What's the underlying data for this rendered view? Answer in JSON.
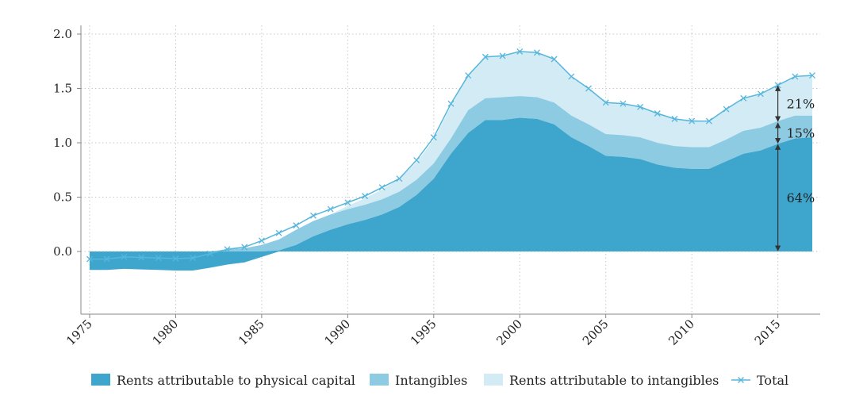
{
  "chart_data": {
    "type": "area",
    "x": [
      1975,
      1976,
      1977,
      1978,
      1979,
      1980,
      1981,
      1982,
      1983,
      1984,
      1985,
      1986,
      1987,
      1988,
      1989,
      1990,
      1991,
      1992,
      1993,
      1994,
      1995,
      1996,
      1997,
      1998,
      1999,
      2000,
      2001,
      2002,
      2003,
      2004,
      2005,
      2006,
      2007,
      2008,
      2009,
      2010,
      2011,
      2012,
      2013,
      2014,
      2015,
      2016,
      2017
    ],
    "series": [
      {
        "name": "Rents attributable to physical capital",
        "color": "#3ea6cd",
        "values": [
          -0.17,
          -0.17,
          -0.16,
          -0.165,
          -0.17,
          -0.175,
          -0.175,
          -0.15,
          -0.12,
          -0.1,
          -0.05,
          0.01,
          0.06,
          0.14,
          0.2,
          0.25,
          0.29,
          0.34,
          0.41,
          0.52,
          0.67,
          0.9,
          1.09,
          1.21,
          1.21,
          1.23,
          1.22,
          1.17,
          1.05,
          0.97,
          0.88,
          0.87,
          0.85,
          0.8,
          0.77,
          0.76,
          0.76,
          0.83,
          0.9,
          0.93,
          0.99,
          1.04,
          1.05
        ]
      },
      {
        "name": "Intangibles",
        "color": "#8dcbe3",
        "values": [
          0,
          0,
          0,
          0,
          0,
          0,
          0,
          0,
          0.02,
          0.03,
          0.06,
          0.1,
          0.14,
          0.14,
          0.14,
          0.14,
          0.14,
          0.14,
          0.14,
          0.14,
          0.14,
          0.14,
          0.21,
          0.2,
          0.21,
          0.2,
          0.2,
          0.2,
          0.2,
          0.2,
          0.2,
          0.2,
          0.2,
          0.2,
          0.2,
          0.2,
          0.2,
          0.2,
          0.21,
          0.21,
          0.21,
          0.21,
          0.2
        ]
      },
      {
        "name": "Rents attributable to intangibles",
        "color": "#d3ebf5",
        "values": [
          0,
          0,
          0,
          0,
          0,
          0,
          0,
          0,
          0,
          0,
          0,
          0,
          0,
          0,
          0,
          0.03,
          0.06,
          0.09,
          0.12,
          0.16,
          0.22,
          0.3,
          0.33,
          0.38,
          0.38,
          0.41,
          0.41,
          0.4,
          0.35,
          0.33,
          0.3,
          0.29,
          0.29,
          0.27,
          0.25,
          0.25,
          0.24,
          0.29,
          0.3,
          0.31,
          0.34,
          0.35,
          0.37
        ]
      },
      {
        "name": "Total",
        "color": "#56b6dc",
        "values": [
          -0.07,
          -0.07,
          -0.05,
          -0.055,
          -0.06,
          -0.065,
          -0.06,
          -0.02,
          0.02,
          0.04,
          0.1,
          0.17,
          0.24,
          0.33,
          0.39,
          0.45,
          0.51,
          0.59,
          0.67,
          0.84,
          1.05,
          1.36,
          1.62,
          1.79,
          1.8,
          1.84,
          1.83,
          1.77,
          1.61,
          1.5,
          1.37,
          1.36,
          1.33,
          1.27,
          1.22,
          1.2,
          1.2,
          1.31,
          1.41,
          1.45,
          1.53,
          1.61,
          1.62
        ]
      }
    ],
    "x_ticks": [
      "1975",
      "1980",
      "1985",
      "1990",
      "1995",
      "2000",
      "2005",
      "2010",
      "2015"
    ],
    "y_ticks": [
      "0.0",
      "0.5",
      "1.0",
      "1.5",
      "2.0"
    ],
    "xlim": [
      1974.9,
      2017.5
    ],
    "ylim": [
      -0.57,
      2.05
    ],
    "grid": true,
    "legend_position": "bottom",
    "annotations": [
      {
        "text": "21%",
        "x": 2015,
        "y_from": 1.53,
        "y_to": 1.19
      },
      {
        "text": "15%",
        "x": 2015,
        "y_from": 1.19,
        "y_to": 0.99
      },
      {
        "text": "64%",
        "x": 2015,
        "y_from": 0.99,
        "y_to": 0.0
      }
    ],
    "title": "",
    "xlabel": "",
    "ylabel": ""
  }
}
